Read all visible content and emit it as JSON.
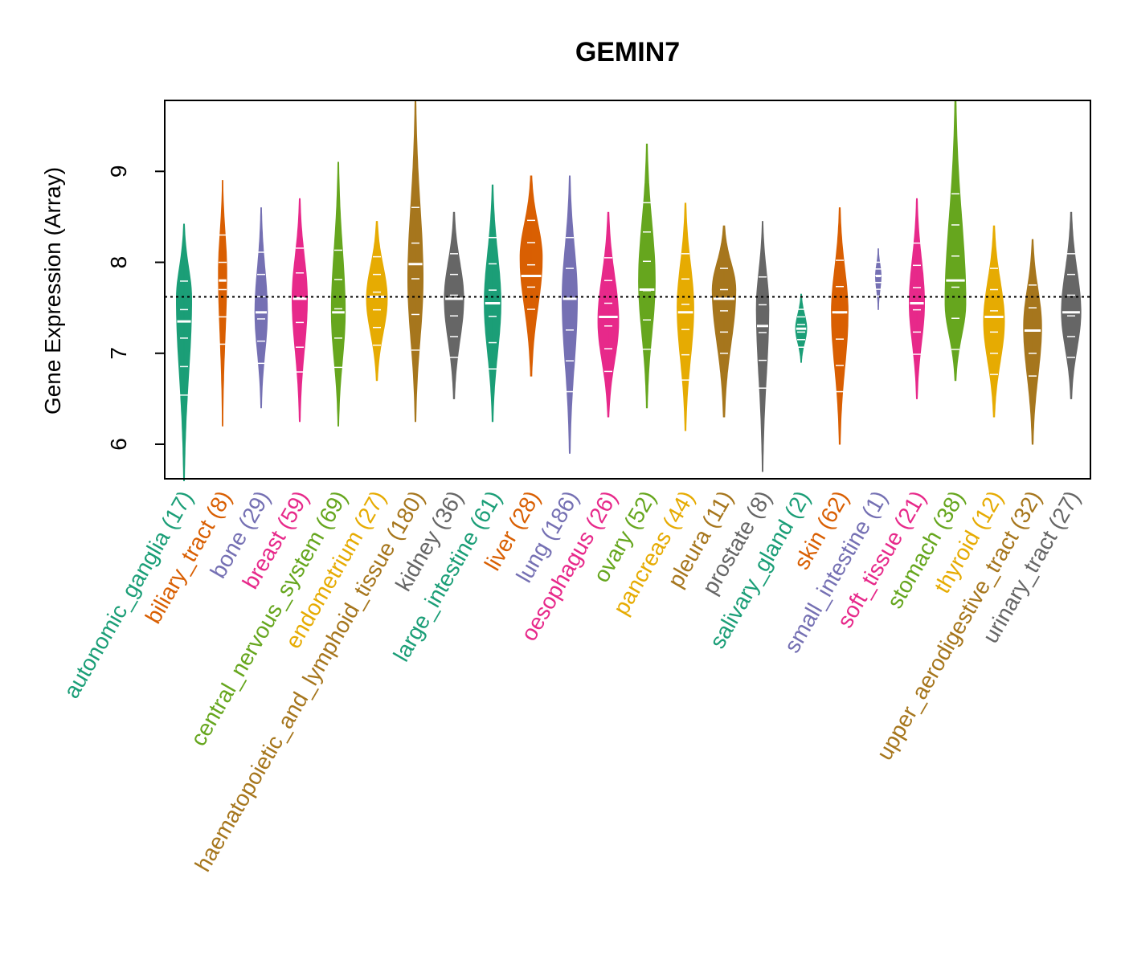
{
  "chart_data": {
    "type": "violin",
    "title": "GEMIN7",
    "xlabel": "",
    "ylabel": "Gene Expression (Array)",
    "ylim": [
      5.62,
      9.78
    ],
    "yticks": [
      "6",
      "7",
      "8",
      "9"
    ],
    "reference_line": 7.62,
    "categories": [
      {
        "name": "autonomic_ganglia",
        "count": "(17)",
        "color": "#1B9E77",
        "min": 5.6,
        "max": 8.42,
        "median": 7.35,
        "mode": 7.6,
        "width": 0.55
      },
      {
        "name": "biliary_tract",
        "count": "(8)",
        "color": "#D95F02",
        "min": 6.2,
        "max": 8.9,
        "median": 7.8,
        "mode": 7.9,
        "width": 0.3
      },
      {
        "name": "bone",
        "count": "(29)",
        "color": "#7570B3",
        "min": 6.4,
        "max": 8.6,
        "median": 7.45,
        "mode": 7.45,
        "width": 0.45
      },
      {
        "name": "breast",
        "count": "(59)",
        "color": "#E7298A",
        "min": 6.25,
        "max": 8.7,
        "median": 7.6,
        "mode": 7.6,
        "width": 0.55
      },
      {
        "name": "central_nervous_system",
        "count": "(69)",
        "color": "#66A61E",
        "min": 6.2,
        "max": 9.1,
        "median": 7.45,
        "mode": 7.45,
        "width": 0.5
      },
      {
        "name": "endometrium",
        "count": "(27)",
        "color": "#E6AB02",
        "min": 6.7,
        "max": 8.45,
        "median": 7.62,
        "mode": 7.6,
        "width": 0.75
      },
      {
        "name": "haematopoietic_and_lymphoid_tissue",
        "count": "(180)",
        "color": "#A6761D",
        "min": 6.25,
        "max": 9.78,
        "median": 7.98,
        "mode": 7.8,
        "width": 0.55
      },
      {
        "name": "kidney",
        "count": "(36)",
        "color": "#666666",
        "min": 6.5,
        "max": 8.55,
        "median": 7.6,
        "mode": 7.6,
        "width": 0.7
      },
      {
        "name": "large_intestine",
        "count": "(61)",
        "color": "#1B9E77",
        "min": 6.25,
        "max": 8.85,
        "median": 7.55,
        "mode": 7.55,
        "width": 0.6
      },
      {
        "name": "liver",
        "count": "(28)",
        "color": "#D95F02",
        "min": 6.75,
        "max": 8.95,
        "median": 7.85,
        "mode": 8.05,
        "width": 0.8
      },
      {
        "name": "lung",
        "count": "(186)",
        "color": "#7570B3",
        "min": 5.9,
        "max": 8.95,
        "median": 7.6,
        "mode": 7.6,
        "width": 0.55
      },
      {
        "name": "oesophagus",
        "count": "(26)",
        "color": "#E7298A",
        "min": 6.3,
        "max": 8.55,
        "median": 7.4,
        "mode": 7.35,
        "width": 0.75
      },
      {
        "name": "ovary",
        "count": "(52)",
        "color": "#66A61E",
        "min": 6.4,
        "max": 9.3,
        "median": 7.7,
        "mode": 7.8,
        "width": 0.6
      },
      {
        "name": "pancreas",
        "count": "(44)",
        "color": "#E6AB02",
        "min": 6.15,
        "max": 8.65,
        "median": 7.45,
        "mode": 7.5,
        "width": 0.6
      },
      {
        "name": "pleura",
        "count": "(11)",
        "color": "#A6761D",
        "min": 6.3,
        "max": 8.4,
        "median": 7.6,
        "mode": 7.7,
        "width": 0.85
      },
      {
        "name": "prostate",
        "count": "(8)",
        "color": "#666666",
        "min": 5.7,
        "max": 8.45,
        "median": 7.3,
        "mode": 7.5,
        "width": 0.45
      },
      {
        "name": "salivary_gland",
        "count": "(2)",
        "color": "#1B9E77",
        "min": 6.9,
        "max": 7.65,
        "median": 7.27,
        "mode": 7.27,
        "width": 0.4
      },
      {
        "name": "skin",
        "count": "(62)",
        "color": "#D95F02",
        "min": 6.0,
        "max": 8.6,
        "median": 7.45,
        "mode": 7.45,
        "width": 0.6
      },
      {
        "name": "small_intestine",
        "count": "(1)",
        "color": "#7570B3",
        "min": 7.48,
        "max": 8.15,
        "median": 7.85,
        "mode": 7.85,
        "width": 0.2
      },
      {
        "name": "soft_tissue",
        "count": "(21)",
        "color": "#E7298A",
        "min": 6.5,
        "max": 8.7,
        "median": 7.55,
        "mode": 7.55,
        "width": 0.55
      },
      {
        "name": "stomach",
        "count": "(38)",
        "color": "#66A61E",
        "min": 6.7,
        "max": 9.78,
        "median": 7.8,
        "mode": 7.55,
        "width": 0.75
      },
      {
        "name": "thyroid",
        "count": "(12)",
        "color": "#E6AB02",
        "min": 6.3,
        "max": 8.4,
        "median": 7.4,
        "mode": 7.35,
        "width": 0.75
      },
      {
        "name": "upper_aerodigestive_tract",
        "count": "(32)",
        "color": "#A6761D",
        "min": 6.0,
        "max": 8.25,
        "median": 7.25,
        "mode": 7.3,
        "width": 0.65
      },
      {
        "name": "urinary_tract",
        "count": "(27)",
        "color": "#666666",
        "min": 6.5,
        "max": 8.55,
        "median": 7.45,
        "mode": 7.45,
        "width": 0.7
      }
    ]
  }
}
